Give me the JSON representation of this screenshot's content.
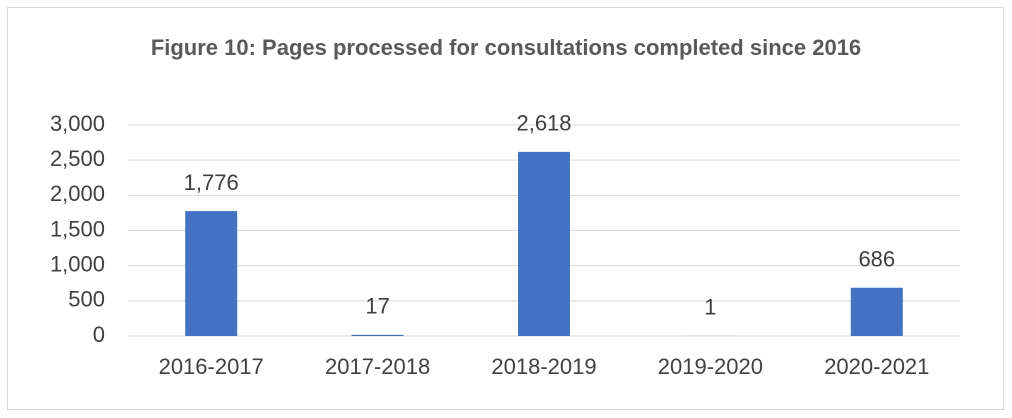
{
  "chart_data": {
    "type": "bar",
    "title": "Figure 10: Pages processed for consultations completed since 2016",
    "categories": [
      "2016-2017",
      "2017-2018",
      "2018-2019",
      "2019-2020",
      "2020-2021"
    ],
    "values": [
      1776,
      17,
      2618,
      1,
      686
    ],
    "value_labels": [
      "1,776",
      "17",
      "2,618",
      "1",
      "686"
    ],
    "color": "#4472c4",
    "ylim": [
      0,
      3000
    ],
    "yticks": [
      0,
      500,
      {
        "value": 1000,
        "label": "1,000"
      },
      {
        "value": 1500,
        "label": "1,500"
      },
      {
        "value": 2000,
        "label": "2,000"
      },
      {
        "value": 2500,
        "label": "2,500"
      },
      {
        "value": 3000,
        "label": "3,000"
      }
    ],
    "grid": true
  }
}
